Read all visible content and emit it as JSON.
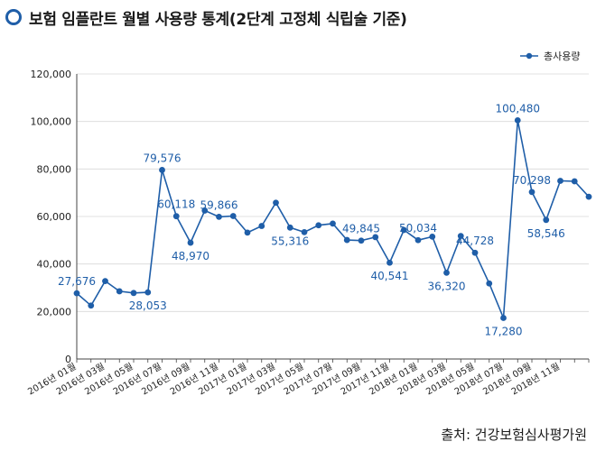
{
  "title": "보험 임플란트 월별 사용량 통계(2단계 고정체 식립술 기준)",
  "source": "출처: 건강보험심사평가원",
  "chart_data": {
    "type": "line",
    "title": "보험 임플란트 월별 사용량 통계(2단계 고정체 식립술 기준)",
    "legend_position": "top-right",
    "grid": true,
    "ylim": [
      0,
      120000
    ],
    "y_ticks": [
      "0",
      "20,000",
      "40,000",
      "60,000",
      "80,000",
      "100,000",
      "120,000"
    ],
    "y_tick_values": [
      0,
      20000,
      40000,
      60000,
      80000,
      100000,
      120000
    ],
    "x_tick_labels": [
      "2016년 01월",
      "2016년 03월",
      "2016년 05월",
      "2016년 07월",
      "2016년 09월",
      "2016년 11월",
      "2017년 01월",
      "2017년 03월",
      "2017년 05월",
      "2017년 07월",
      "2017년 09월",
      "2017년 11월",
      "2018년 01월",
      "2018년 03월",
      "2018년 05월",
      "2018년 07월",
      "2018년 09월",
      "2018년 11월"
    ],
    "series": [
      {
        "name": "총사용량",
        "color": "#1f5ea8",
        "values": [
          27676,
          22500,
          32800,
          28500,
          27800,
          28053,
          79576,
          60118,
          48970,
          62500,
          59866,
          60200,
          53200,
          56000,
          65800,
          55316,
          53400,
          56300,
          57000,
          50100,
          49845,
          51300,
          40541,
          54300,
          50034,
          51500,
          36320,
          51800,
          44728,
          31800,
          17280,
          100480,
          70298,
          58546,
          75000,
          74800,
          68300
        ]
      }
    ],
    "data_labels": [
      {
        "index": 0,
        "text": "27,676",
        "pos": "above"
      },
      {
        "index": 5,
        "text": "28,053",
        "pos": "below"
      },
      {
        "index": 6,
        "text": "79,576",
        "pos": "above"
      },
      {
        "index": 7,
        "text": "60,118",
        "pos": "above"
      },
      {
        "index": 8,
        "text": "48,970",
        "pos": "below"
      },
      {
        "index": 10,
        "text": "59,866",
        "pos": "above"
      },
      {
        "index": 15,
        "text": "55,316",
        "pos": "below"
      },
      {
        "index": 20,
        "text": "49,845",
        "pos": "above"
      },
      {
        "index": 22,
        "text": "40,541",
        "pos": "below"
      },
      {
        "index": 24,
        "text": "50,034",
        "pos": "above"
      },
      {
        "index": 26,
        "text": "36,320",
        "pos": "below"
      },
      {
        "index": 28,
        "text": "44,728",
        "pos": "above"
      },
      {
        "index": 30,
        "text": "17,280",
        "pos": "below"
      },
      {
        "index": 31,
        "text": "100,480",
        "pos": "above"
      },
      {
        "index": 32,
        "text": "70,298",
        "pos": "above"
      },
      {
        "index": 33,
        "text": "58,546",
        "pos": "below"
      }
    ]
  }
}
